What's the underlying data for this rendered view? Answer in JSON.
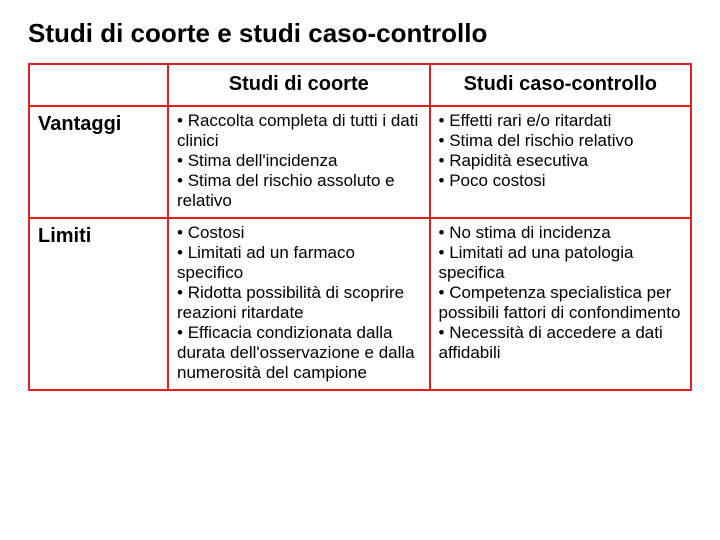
{
  "title": "Studi di coorte e studi caso-controllo",
  "border_color": "#e02020",
  "background_color": "#ffffff",
  "text_color": "#000000",
  "font_family": "Comic Sans MS",
  "columns": {
    "stub": "",
    "col1": "Studi di coorte",
    "col2": "Studi caso-controllo"
  },
  "rows": {
    "vantaggi": {
      "label": "Vantaggi",
      "coorte": [
        "Raccolta completa di tutti i dati clinici",
        "Stima dell'incidenza",
        "Stima del rischio assoluto e relativo"
      ],
      "caso_controllo": [
        "Effetti rari e/o ritardati",
        "Stima del rischio relativo",
        "Rapidità esecutiva",
        "Poco costosi"
      ]
    },
    "limiti": {
      "label": "Limiti",
      "coorte": [
        "Costosi",
        "Limitati ad un farmaco specifico",
        "Ridotta possibilità di scoprire reazioni ritardate",
        "Efficacia condizionata dalla durata dell'osservazione e dalla numerosità del campione"
      ],
      "caso_controllo": [
        "No stima di incidenza",
        "Limitati ad una patologia specifica",
        "Competenza specialistica per possibili fattori di confondimento",
        "Necessità di accedere a dati affidabili"
      ]
    }
  }
}
